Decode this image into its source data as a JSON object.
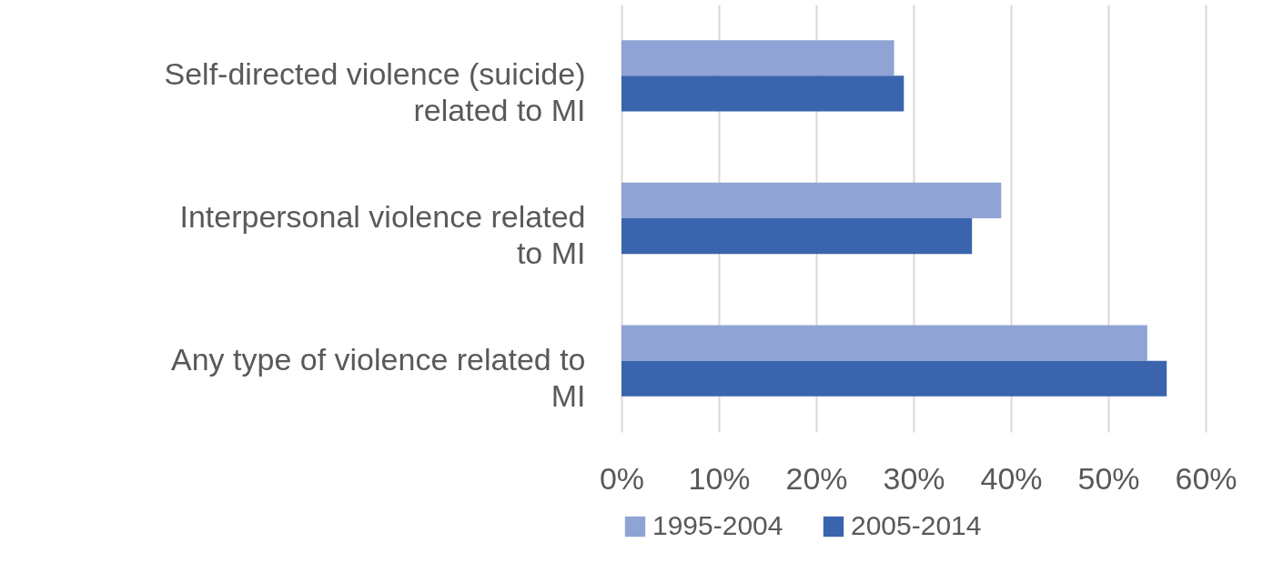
{
  "chart_data": {
    "type": "bar",
    "orientation": "horizontal",
    "categories": [
      "Self-directed violence (suicide) related to MI",
      "Interpersonal violence related to MI",
      "Any type of violence related to MI"
    ],
    "series": [
      {
        "name": "1995-2004",
        "color": "#8fa3d4",
        "values": [
          28,
          39,
          54
        ]
      },
      {
        "name": "2005-2014",
        "color": "#3a64ad",
        "values": [
          29,
          36,
          56
        ]
      }
    ],
    "xlim": [
      0,
      60
    ],
    "xticks": [
      {
        "value": 0,
        "label": "0%"
      },
      {
        "value": 10,
        "label": "10%"
      },
      {
        "value": 20,
        "label": "20%"
      },
      {
        "value": 30,
        "label": "30%"
      },
      {
        "value": 40,
        "label": "40%"
      },
      {
        "value": 50,
        "label": "50%"
      },
      {
        "value": 60,
        "label": "60%"
      }
    ],
    "grid": "x",
    "legend": "bottom"
  }
}
